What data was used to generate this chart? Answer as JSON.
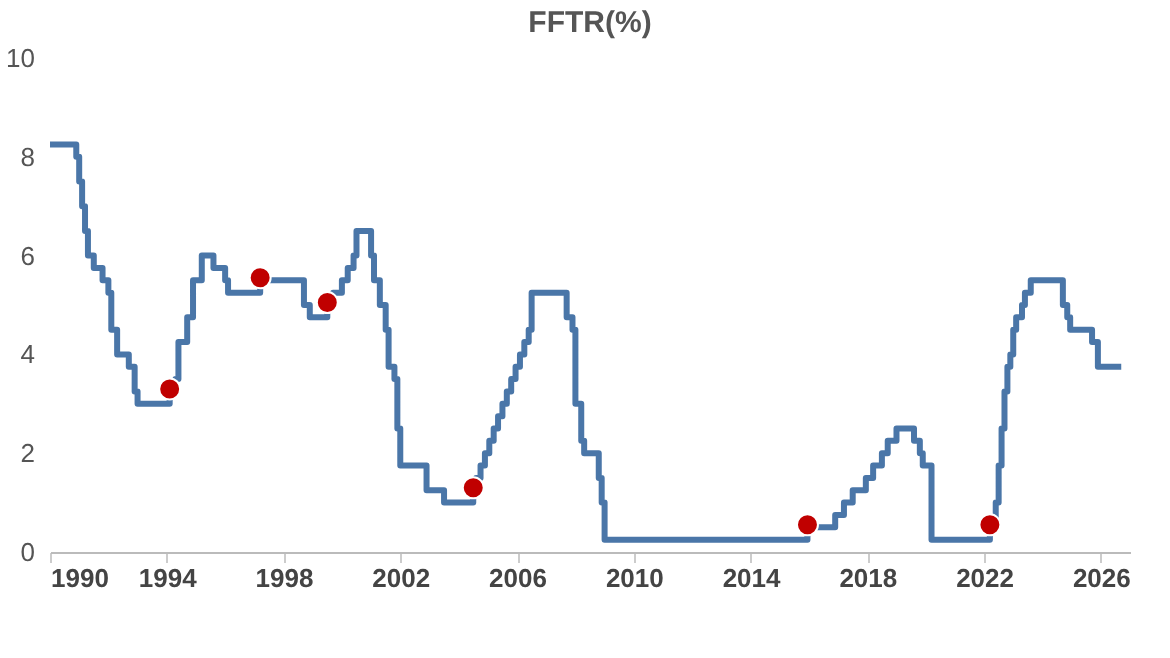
{
  "chart_data": {
    "type": "step",
    "title": "FFTR(%)",
    "xlim": [
      1990,
      2027
    ],
    "xticks": [
      1990,
      1994,
      1998,
      2002,
      2006,
      2010,
      2014,
      2018,
      2022,
      2026
    ],
    "ylim": [
      0,
      10
    ],
    "yticks": [
      0,
      2,
      4,
      6,
      8,
      10
    ],
    "grid": false,
    "legend": false,
    "series": [
      {
        "type": "step",
        "color": "#4a76a8",
        "line_style": "solid",
        "marker": "none",
        "x": [
          1990,
          1990.9,
          1991.0,
          1991.1,
          1991.2,
          1991.3,
          1991.5,
          1991.8,
          1992.0,
          1992.1,
          1992.3,
          1992.7,
          1992.9,
          1993.0,
          1994.1,
          1994.3,
          1994.4,
          1994.7,
          1994.9,
          1995.2,
          1995.6,
          1996.0,
          1996.1,
          1997.2,
          1998.7,
          1998.9,
          1999.5,
          1999.7,
          2000.0,
          2000.2,
          2000.4,
          2000.5,
          2001.0,
          2001.1,
          2001.3,
          2001.5,
          2001.6,
          2001.8,
          2001.9,
          2002.0,
          2002.9,
          2003.5,
          2004.5,
          2004.6,
          2004.75,
          2004.9,
          2005.05,
          2005.2,
          2005.35,
          2005.5,
          2005.65,
          2005.8,
          2005.95,
          2006.1,
          2006.25,
          2006.4,
          2006.5,
          2007.7,
          2007.9,
          2008.0,
          2008.2,
          2008.3,
          2008.8,
          2008.9,
          2009.0,
          2015.95,
          2016.9,
          2017.2,
          2017.5,
          2017.95,
          2018.2,
          2018.5,
          2018.7,
          2019.0,
          2019.6,
          2019.8,
          2019.9,
          2020.2,
          2022.2,
          2022.4,
          2022.5,
          2022.6,
          2022.7,
          2022.8,
          2022.9,
          2023.0,
          2023.1,
          2023.3,
          2023.4,
          2023.6,
          2024.7,
          2024.85,
          2024.95,
          2025.7,
          2025.9,
          2026.7
        ],
        "values": [
          8.25,
          8.0,
          7.5,
          7.0,
          6.5,
          6.0,
          5.75,
          5.5,
          5.25,
          4.5,
          4.0,
          3.75,
          3.25,
          3.0,
          3.25,
          3.5,
          4.25,
          4.75,
          5.5,
          6.0,
          5.75,
          5.5,
          5.25,
          5.5,
          5.0,
          4.75,
          5.0,
          5.25,
          5.5,
          5.75,
          6.0,
          6.5,
          6.0,
          5.5,
          5.0,
          4.5,
          3.75,
          3.5,
          2.5,
          1.75,
          1.25,
          1.0,
          1.25,
          1.5,
          1.75,
          2.0,
          2.25,
          2.5,
          2.75,
          3.0,
          3.25,
          3.5,
          3.75,
          4.0,
          4.25,
          4.5,
          5.25,
          4.75,
          4.5,
          3.0,
          2.25,
          2.0,
          1.5,
          1.0,
          0.25,
          0.5,
          0.75,
          1.0,
          1.25,
          1.5,
          1.75,
          2.0,
          2.25,
          2.5,
          2.25,
          2.0,
          1.75,
          0.25,
          0.5,
          1.0,
          1.75,
          2.5,
          3.25,
          3.75,
          4.0,
          4.5,
          4.75,
          5.0,
          5.25,
          5.5,
          5.0,
          4.75,
          4.5,
          4.25,
          3.75,
          3.75
        ]
      },
      {
        "type": "scatter",
        "color": "#c00000",
        "marker": "circle",
        "x": [
          1994.1,
          1997.2,
          1999.5,
          2004.5,
          2015.95,
          2022.2
        ],
        "values": [
          3.3,
          5.55,
          5.05,
          1.3,
          0.55,
          0.55
        ]
      }
    ]
  }
}
